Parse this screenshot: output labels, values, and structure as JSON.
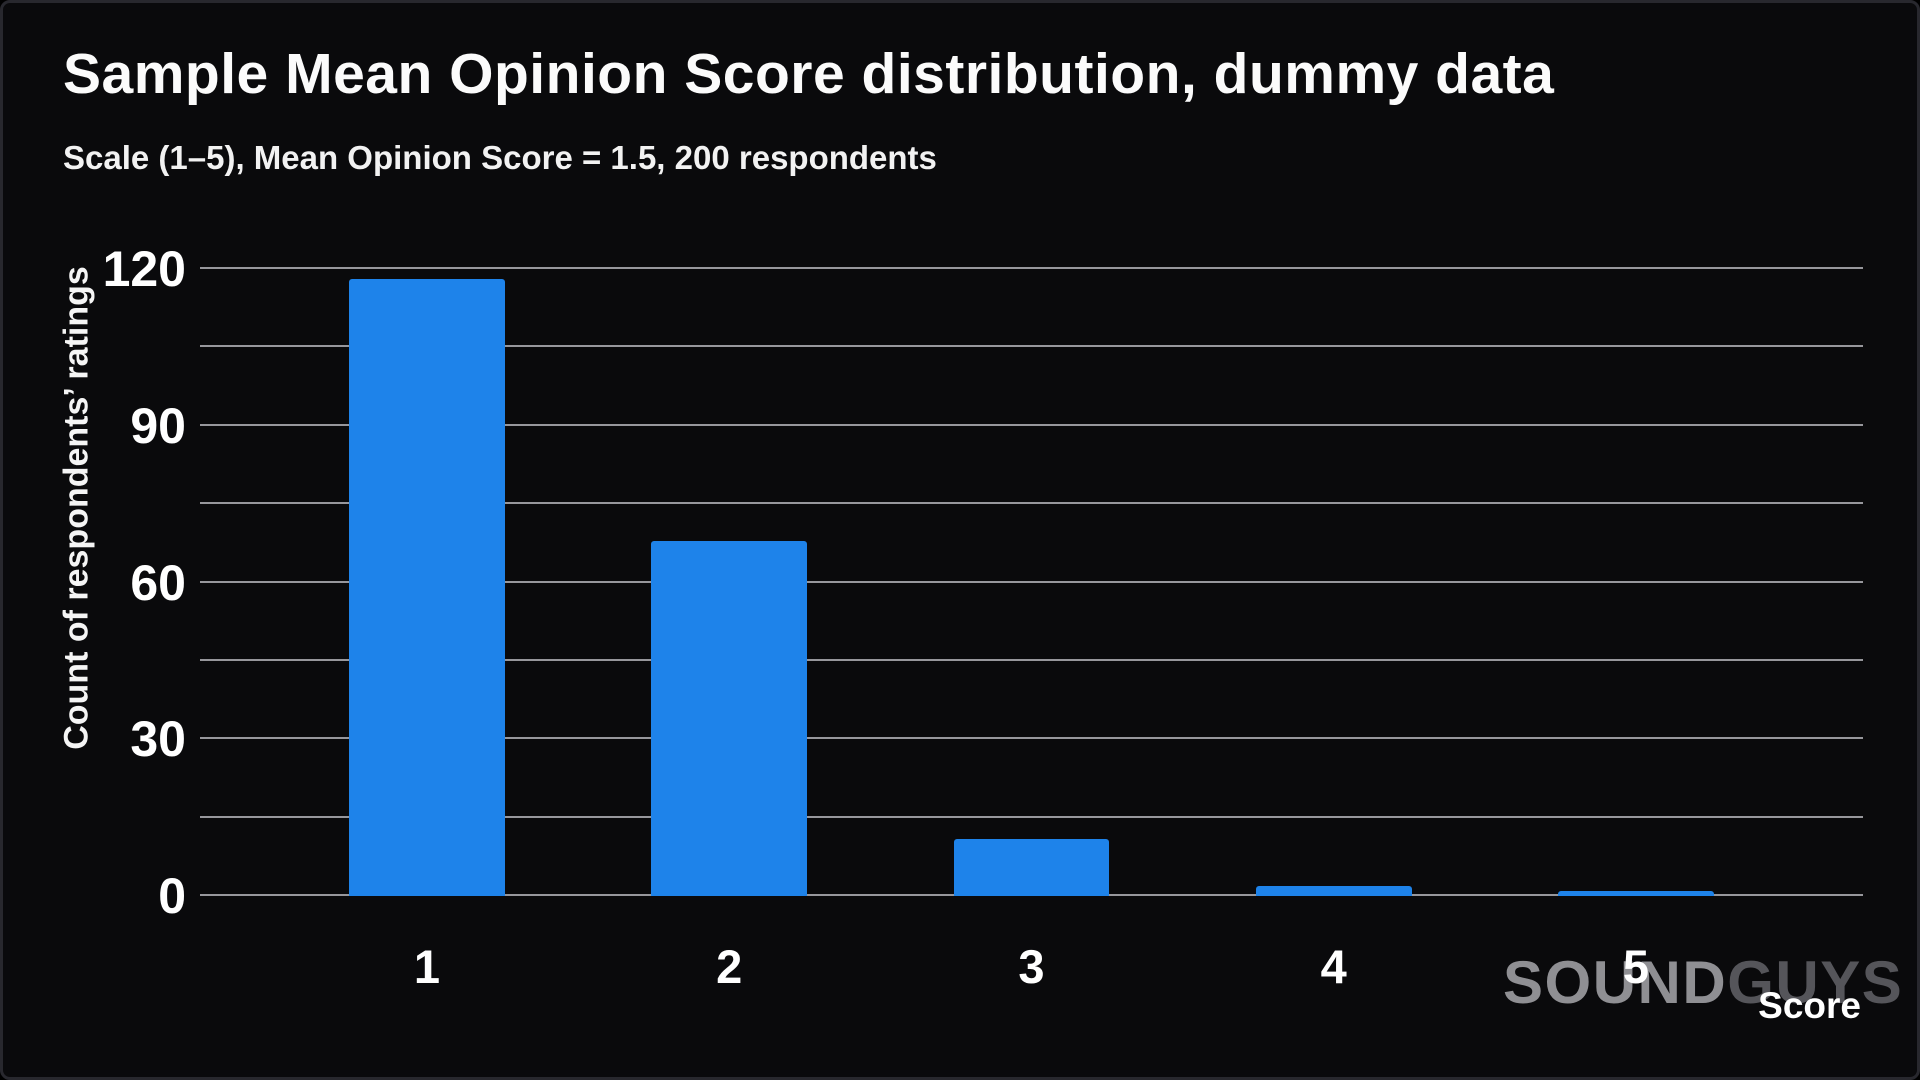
{
  "watermark": {
    "part1": "SOUND",
    "part2": "GUYS"
  },
  "chart_data": {
    "type": "bar",
    "title": "Sample Mean Opinion Score distribution, dummy data",
    "subtitle": "Scale (1–5), Mean Opinion Score = 1.5, 200 respondents",
    "categories": [
      "1",
      "2",
      "3",
      "4",
      "5"
    ],
    "values": [
      118,
      68,
      11,
      2,
      1
    ],
    "xlabel": "Score",
    "ylabel": "Count of respondents’ ratings",
    "ylim": [
      0,
      120
    ],
    "ytick_labels": [
      "0",
      "30",
      "60",
      "90",
      "120"
    ],
    "ytick_step": 30,
    "grid_step": 15,
    "grid_on": true,
    "legend": "none",
    "bar_color": "#1E83EA",
    "background_color": "#0A0A0C",
    "gridline_color": "#97979C",
    "text_color": "#FFFFFF"
  }
}
